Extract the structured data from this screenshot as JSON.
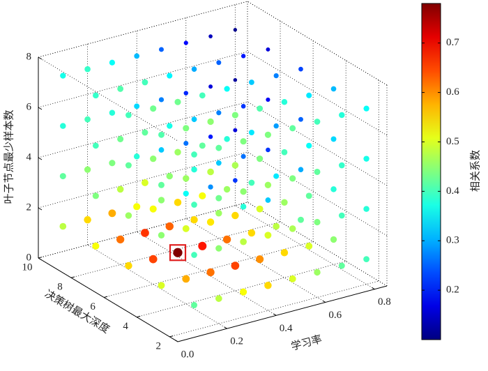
{
  "chart_data": {
    "type": "scatter3d",
    "xlabel": "学习率",
    "ylabel": "决策树最大深度",
    "zlabel": "叶子节点最少样本数",
    "colorbar_label": "相关系数",
    "colormap": "jet",
    "xlim": [
      0,
      0.85
    ],
    "ylim": [
      1.5,
      10
    ],
    "zlim": [
      0,
      8
    ],
    "clim": [
      0.1,
      0.78
    ],
    "xticks": [
      {
        "value": 0,
        "label": "0.0"
      },
      0.2,
      0.4,
      0.6,
      0.8
    ],
    "yticks": [
      2,
      4,
      6,
      8,
      10
    ],
    "zticks": [
      0,
      2,
      4,
      6,
      8
    ],
    "cticks": [
      0.2,
      0.3,
      0.4,
      0.5,
      0.6,
      0.7
    ],
    "grid": true,
    "highlight_point": 18,
    "highlight_color": "#e02020",
    "x": [
      0.1,
      0.2,
      0.3,
      0.4,
      0.5,
      0.6,
      0.7,
      0.8,
      0.1,
      0.2,
      0.3,
      0.4,
      0.5,
      0.6,
      0.7,
      0.8,
      0.1,
      0.2,
      0.3,
      0.4,
      0.5,
      0.6,
      0.7,
      0.8,
      0.1,
      0.2,
      0.3,
      0.4,
      0.5,
      0.6,
      0.7,
      0.8,
      0.1,
      0.2,
      0.3,
      0.4,
      0.5,
      0.6,
      0.7,
      0.8,
      0.1,
      0.2,
      0.3,
      0.4,
      0.5,
      0.6,
      0.7,
      0.8,
      0.1,
      0.2,
      0.3,
      0.4,
      0.5,
      0.6,
      0.7,
      0.8,
      0.1,
      0.2,
      0.3,
      0.4,
      0.5,
      0.6,
      0.7,
      0.8,
      0.1,
      0.2,
      0.3,
      0.4,
      0.5,
      0.6,
      0.7,
      0.8,
      0.1,
      0.2,
      0.3,
      0.4,
      0.5,
      0.6,
      0.7,
      0.8,
      0.1,
      0.2,
      0.3,
      0.4,
      0.5,
      0.6,
      0.7,
      0.8,
      0.1,
      0.2,
      0.3,
      0.4,
      0.5,
      0.6,
      0.7,
      0.8,
      0.1,
      0.2,
      0.3,
      0.4,
      0.5,
      0.6,
      0.7,
      0.8,
      0.1,
      0.2,
      0.3,
      0.4,
      0.5,
      0.6,
      0.7,
      0.8,
      0.1,
      0.2,
      0.3,
      0.4,
      0.5,
      0.6,
      0.7,
      0.8,
      0.1,
      0.2,
      0.3,
      0.4,
      0.5,
      0.6,
      0.7,
      0.8,
      0.1,
      0.2,
      0.3,
      0.4,
      0.5,
      0.6,
      0.7,
      0.8,
      0.1,
      0.2,
      0.3,
      0.4,
      0.5,
      0.6,
      0.7,
      0.8,
      0.1,
      0.2,
      0.3,
      0.4,
      0.5,
      0.6,
      0.7,
      0.8,
      0.1,
      0.2,
      0.3,
      0.4,
      0.5,
      0.6,
      0.7,
      0.8
    ],
    "y": [
      2,
      2,
      2,
      2,
      2,
      2,
      2,
      2,
      4,
      4,
      4,
      4,
      4,
      4,
      4,
      4,
      6,
      6,
      6,
      6,
      6,
      6,
      6,
      6,
      8,
      8,
      8,
      8,
      8,
      8,
      8,
      8,
      10,
      10,
      10,
      10,
      10,
      10,
      10,
      10,
      2,
      2,
      2,
      2,
      2,
      2,
      2,
      2,
      4,
      4,
      4,
      4,
      4,
      4,
      4,
      4,
      6,
      6,
      6,
      6,
      6,
      6,
      6,
      6,
      8,
      8,
      8,
      8,
      8,
      8,
      8,
      8,
      10,
      10,
      10,
      10,
      10,
      10,
      10,
      10,
      2,
      2,
      2,
      2,
      2,
      2,
      2,
      2,
      4,
      4,
      4,
      4,
      4,
      4,
      4,
      4,
      6,
      6,
      6,
      6,
      6,
      6,
      6,
      6,
      8,
      8,
      8,
      8,
      8,
      8,
      8,
      8,
      10,
      10,
      10,
      10,
      10,
      10,
      10,
      10,
      2,
      2,
      2,
      2,
      2,
      2,
      2,
      2,
      4,
      4,
      4,
      4,
      4,
      4,
      4,
      4,
      6,
      6,
      6,
      6,
      6,
      6,
      6,
      6,
      8,
      8,
      8,
      8,
      8,
      8,
      8,
      8,
      10,
      10,
      10,
      10,
      10,
      10,
      10,
      10
    ],
    "z": [
      1,
      1,
      1,
      1,
      1,
      1,
      1,
      1,
      1,
      1,
      1,
      1,
      1,
      1,
      1,
      1,
      1,
      1,
      1,
      1,
      1,
      1,
      1,
      1,
      1,
      1,
      1,
      1,
      1,
      1,
      1,
      1,
      1,
      1,
      1,
      1,
      1,
      1,
      1,
      1,
      3,
      3,
      3,
      3,
      3,
      3,
      3,
      3,
      3,
      3,
      3,
      3,
      3,
      3,
      3,
      3,
      3,
      3,
      3,
      3,
      3,
      3,
      3,
      3,
      3,
      3,
      3,
      3,
      3,
      3,
      3,
      3,
      3,
      3,
      3,
      3,
      3,
      3,
      3,
      3,
      5,
      5,
      5,
      5,
      5,
      5,
      5,
      5,
      5,
      5,
      5,
      5,
      5,
      5,
      5,
      5,
      5,
      5,
      5,
      5,
      5,
      5,
      5,
      5,
      5,
      5,
      5,
      5,
      5,
      5,
      5,
      5,
      5,
      5,
      5,
      5,
      5,
      5,
      5,
      5,
      7,
      7,
      7,
      7,
      7,
      7,
      7,
      7,
      7,
      7,
      7,
      7,
      7,
      7,
      7,
      7,
      7,
      7,
      7,
      7,
      7,
      7,
      7,
      7,
      7,
      7,
      7,
      7,
      7,
      7,
      7,
      7,
      7,
      7,
      7,
      7,
      7,
      7,
      7,
      7
    ],
    "values": [
      0.42,
      0.48,
      0.52,
      0.55,
      0.5,
      0.46,
      0.42,
      0.4,
      0.5,
      0.58,
      0.62,
      0.65,
      0.6,
      0.55,
      0.5,
      0.45,
      0.55,
      0.65,
      0.78,
      0.68,
      0.62,
      0.55,
      0.48,
      0.42,
      0.52,
      0.62,
      0.66,
      0.63,
      0.55,
      0.46,
      0.38,
      0.32,
      0.48,
      0.55,
      0.58,
      0.52,
      0.45,
      0.36,
      0.28,
      0.22,
      0.4,
      0.45,
      0.48,
      0.5,
      0.47,
      0.44,
      0.4,
      0.38,
      0.45,
      0.5,
      0.54,
      0.55,
      0.5,
      0.46,
      0.42,
      0.38,
      0.46,
      0.52,
      0.55,
      0.52,
      0.46,
      0.4,
      0.34,
      0.3,
      0.44,
      0.48,
      0.5,
      0.45,
      0.38,
      0.32,
      0.26,
      0.22,
      0.42,
      0.45,
      0.44,
      0.38,
      0.32,
      0.26,
      0.2,
      0.16,
      0.4,
      0.43,
      0.45,
      0.46,
      0.44,
      0.42,
      0.39,
      0.37,
      0.42,
      0.46,
      0.48,
      0.47,
      0.44,
      0.4,
      0.36,
      0.33,
      0.42,
      0.45,
      0.46,
      0.42,
      0.38,
      0.34,
      0.29,
      0.25,
      0.4,
      0.43,
      0.42,
      0.37,
      0.32,
      0.27,
      0.22,
      0.18,
      0.38,
      0.4,
      0.38,
      0.33,
      0.27,
      0.21,
      0.16,
      0.12,
      0.4,
      0.42,
      0.44,
      0.44,
      0.42,
      0.4,
      0.38,
      0.36,
      0.41,
      0.44,
      0.45,
      0.44,
      0.41,
      0.38,
      0.34,
      0.31,
      0.4,
      0.43,
      0.43,
      0.4,
      0.36,
      0.32,
      0.27,
      0.23,
      0.39,
      0.41,
      0.4,
      0.35,
      0.3,
      0.25,
      0.2,
      0.16,
      0.37,
      0.39,
      0.36,
      0.31,
      0.25,
      0.19,
      0.14,
      0.11
    ]
  }
}
